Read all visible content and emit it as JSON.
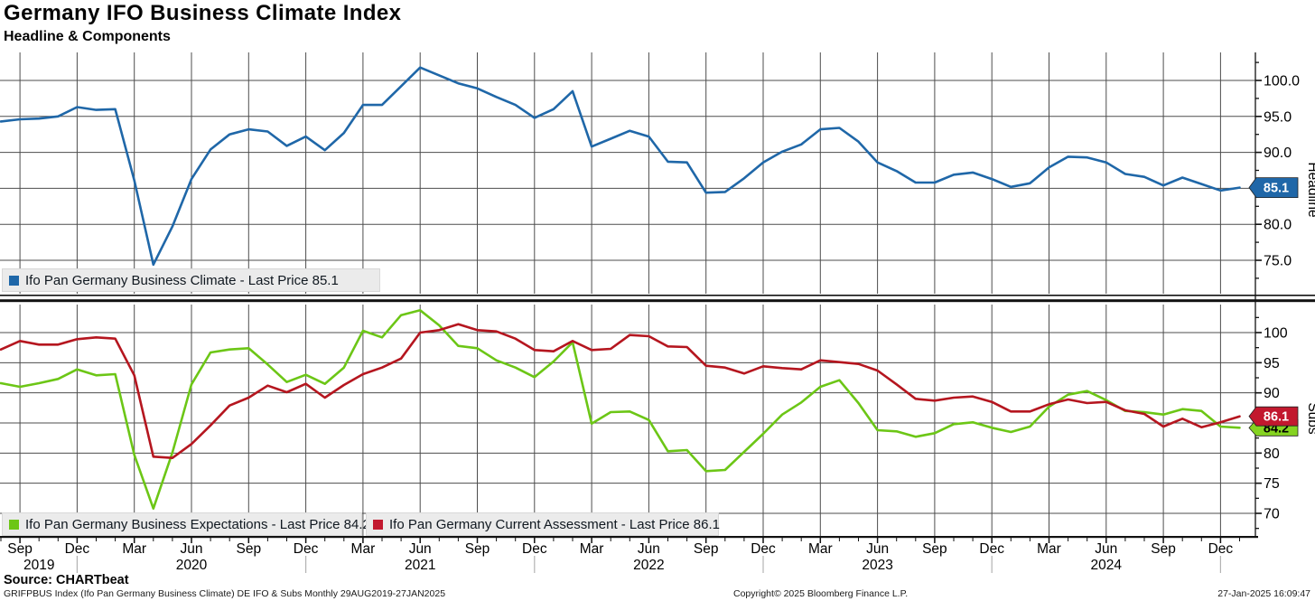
{
  "header": {
    "title": "Germany IFO Business Climate Index",
    "subtitle": "Headline & Components"
  },
  "colors": {
    "climate_blue": "#1f67a8",
    "expectations_green": "#6cc616",
    "expectations_badge_green": "#85d321",
    "assessment_red": "#b5161f",
    "assessment_badge_red": "#c2182e",
    "gridline": "#4d4d4d",
    "axis": "#111111",
    "legend_bg": "#ebebeb",
    "year_divider_gray": "#b3b3b3"
  },
  "top_panel": {
    "axis_title": "Headline",
    "tick_labels": [
      "100.0",
      "95.0",
      "90.0",
      "85.0",
      "80.0",
      "75.0"
    ],
    "tick_values": [
      100,
      95,
      90,
      85,
      80,
      75
    ],
    "badge": {
      "value": "85.1"
    },
    "legend_label": "Ifo Pan Germany Business Climate - Last Price 85.1"
  },
  "bottom_panel": {
    "axis_title": "Subs",
    "tick_labels": [
      "100",
      "95",
      "90",
      "85",
      "80",
      "75",
      "70"
    ],
    "tick_values": [
      100,
      95,
      90,
      85,
      80,
      75,
      70
    ],
    "badges": [
      {
        "value": "86.1",
        "series": "current_assessment"
      },
      {
        "value": "84.2",
        "series": "business_expectations"
      }
    ],
    "legend_label_expectations": "Ifo Pan Germany Business Expectations - Last Price 84.2",
    "legend_label_assessment": "Ifo Pan Germany Current Assessment - Last Price 86.1"
  },
  "x_axis": {
    "quarter_labels": [
      "Sep",
      "Dec",
      "Mar",
      "Jun",
      "Sep",
      "Dec",
      "Mar",
      "Jun",
      "Sep",
      "Dec",
      "Mar",
      "Jun",
      "Sep",
      "Dec",
      "Mar",
      "Jun",
      "Sep",
      "Dec",
      "Mar",
      "Jun",
      "Sep",
      "Dec"
    ],
    "year_labels": [
      "2019",
      "2020",
      "2021",
      "2022",
      "2023",
      "2024"
    ]
  },
  "footer": {
    "source": "Source: CHARTbeat",
    "security_line": "GRIFPBUS Index (Ifo Pan Germany Business Climate) DE IFO & Subs  Monthly 29AUG2019-27JAN2025",
    "copyright": "Copyright© 2025 Bloomberg Finance L.P.",
    "datetime": "27-Jan-2025 16:09:47"
  },
  "chart_data": [
    {
      "type": "line",
      "panel": "headline",
      "name": "Ifo Pan Germany Business Climate",
      "color": "#1f67a8",
      "last_price": 85.1,
      "frequency": "monthly",
      "x_start": "2019-08",
      "x_end": "2025-01",
      "ylim": [
        70.4,
        103.9
      ],
      "yticks": [
        75,
        80,
        85,
        90,
        95,
        100
      ],
      "values": [
        94.3,
        94.6,
        94.7,
        95.0,
        96.3,
        95.9,
        96.0,
        86.1,
        74.4,
        79.7,
        86.3,
        90.4,
        92.5,
        93.2,
        92.9,
        90.9,
        92.2,
        90.3,
        92.7,
        96.6,
        96.6,
        99.2,
        101.8,
        100.7,
        99.6,
        98.9,
        97.7,
        96.6,
        94.8,
        96.0,
        98.5,
        90.8,
        91.9,
        93.0,
        92.2,
        88.7,
        88.6,
        84.4,
        84.5,
        86.4,
        88.6,
        90.1,
        91.1,
        93.2,
        93.4,
        91.5,
        88.6,
        87.4,
        85.8,
        85.8,
        86.9,
        87.2,
        86.3,
        85.2,
        85.7,
        87.9,
        89.4,
        89.3,
        88.6,
        87.0,
        86.6,
        85.4,
        86.5,
        85.6,
        84.7,
        85.1
      ]
    },
    {
      "type": "line",
      "panel": "subs",
      "name": "Ifo Pan Germany Business Expectations",
      "color": "#6cc616",
      "last_price": 84.2,
      "frequency": "monthly",
      "x_start": "2019-08",
      "x_end": "2025-01",
      "ylim": [
        66.3,
        104.6
      ],
      "yticks": [
        70,
        75,
        80,
        85,
        90,
        95,
        100
      ],
      "values": [
        91.6,
        91.0,
        91.6,
        92.3,
        93.9,
        92.9,
        93.1,
        79.7,
        70.8,
        80.1,
        91.4,
        96.7,
        97.2,
        97.4,
        94.7,
        91.8,
        93.0,
        91.5,
        94.2,
        100.3,
        99.2,
        102.9,
        103.7,
        101.2,
        97.8,
        97.4,
        95.4,
        94.2,
        92.6,
        95.2,
        98.4,
        84.9,
        86.8,
        86.9,
        85.5,
        80.3,
        80.5,
        77.0,
        77.2,
        80.2,
        83.2,
        86.4,
        88.4,
        91.0,
        92.1,
        88.3,
        83.8,
        83.6,
        82.7,
        83.3,
        84.8,
        85.1,
        84.2,
        83.5,
        84.4,
        87.7,
        89.7,
        90.3,
        88.8,
        87.0,
        86.8,
        86.4,
        87.3,
        87.0,
        84.4,
        84.2
      ]
    },
    {
      "type": "line",
      "panel": "subs",
      "name": "Ifo Pan Germany Current Assessment",
      "color": "#b5161f",
      "last_price": 86.1,
      "frequency": "monthly",
      "x_start": "2019-08",
      "x_end": "2025-01",
      "ylim": [
        66.3,
        104.6
      ],
      "yticks": [
        70,
        75,
        80,
        85,
        90,
        95,
        100
      ],
      "values": [
        97.2,
        98.6,
        98.0,
        98.0,
        98.9,
        99.2,
        99.0,
        92.9,
        79.4,
        79.2,
        81.5,
        84.6,
        87.9,
        89.2,
        91.2,
        90.1,
        91.5,
        89.2,
        91.3,
        93.1,
        94.2,
        95.7,
        100.0,
        100.4,
        101.4,
        100.4,
        100.2,
        99.0,
        97.1,
        96.9,
        98.6,
        97.1,
        97.3,
        99.6,
        99.4,
        97.7,
        97.6,
        94.5,
        94.2,
        93.2,
        94.4,
        94.1,
        93.9,
        95.4,
        95.1,
        94.8,
        93.7,
        91.4,
        89.0,
        88.7,
        89.2,
        89.4,
        88.5,
        86.9,
        86.9,
        88.1,
        88.9,
        88.3,
        88.5,
        87.1,
        86.5,
        84.4,
        85.7,
        84.3,
        85.1,
        86.1
      ]
    }
  ]
}
